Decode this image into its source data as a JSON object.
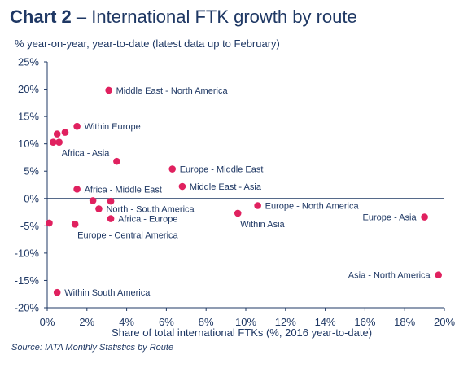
{
  "header": {
    "title_bold": "Chart 2",
    "title_rest": " – International FTK growth by route",
    "subtitle": "% year-on-year, year-to-date (latest data up to February)"
  },
  "source": "Source: IATA Monthly Statistics by Route",
  "chart_data": {
    "type": "scatter",
    "xlabel": "Share of total international FTKs (%, 2016 year-to-date)",
    "ylabel": "% year-on-year, year-to-date (latest data up to February)",
    "xlim": [
      0,
      20
    ],
    "ylim": [
      -20,
      25
    ],
    "x_ticks": [
      "0%",
      "2%",
      "4%",
      "6%",
      "8%",
      "10%",
      "12%",
      "14%",
      "16%",
      "18%",
      "20%"
    ],
    "y_ticks": [
      "25%",
      "20%",
      "15%",
      "10%",
      "5%",
      "0%",
      "-5%",
      "-10%",
      "-15%",
      "-20%"
    ],
    "grid": false,
    "marker_color": "#e0215f",
    "axis_color": "#1f3864",
    "points": [
      {
        "x": 3.1,
        "y": 19.8,
        "label": "Middle East - North America",
        "anchor": "right"
      },
      {
        "x": 1.5,
        "y": 13.2,
        "label": "Within Europe",
        "anchor": "right"
      },
      {
        "x": 0.5,
        "y": 11.8,
        "label": "",
        "anchor": "right"
      },
      {
        "x": 0.9,
        "y": 12.1,
        "label": "",
        "anchor": "right"
      },
      {
        "x": 0.3,
        "y": 10.3,
        "label": "",
        "anchor": "right"
      },
      {
        "x": 0.6,
        "y": 10.3,
        "label": "Africa - Asia",
        "anchor": "below-right"
      },
      {
        "x": 3.5,
        "y": 6.8,
        "label": "",
        "anchor": "right"
      },
      {
        "x": 6.3,
        "y": 5.4,
        "label": "Europe - Middle East",
        "anchor": "right"
      },
      {
        "x": 6.8,
        "y": 2.2,
        "label": "Middle East - Asia",
        "anchor": "right"
      },
      {
        "x": 1.5,
        "y": 1.7,
        "label": "Africa - Middle East",
        "anchor": "right"
      },
      {
        "x": 2.3,
        "y": -0.4,
        "label": "",
        "anchor": "right"
      },
      {
        "x": 3.2,
        "y": -0.5,
        "label": "",
        "anchor": "right"
      },
      {
        "x": 2.6,
        "y": -1.9,
        "label": "North - South America",
        "anchor": "right"
      },
      {
        "x": 3.2,
        "y": -3.7,
        "label": "Africa - Europe",
        "anchor": "right"
      },
      {
        "x": 10.6,
        "y": -1.3,
        "label": "Europe - North America",
        "anchor": "right"
      },
      {
        "x": 9.6,
        "y": -2.7,
        "label": "Within Asia",
        "anchor": "below-right"
      },
      {
        "x": 19.0,
        "y": -3.4,
        "label": "Europe - Asia",
        "anchor": "left"
      },
      {
        "x": 0.1,
        "y": -4.5,
        "label": "",
        "anchor": "right"
      },
      {
        "x": 1.4,
        "y": -4.7,
        "label": "Europe - Central America",
        "anchor": "below-right"
      },
      {
        "x": 19.7,
        "y": -14.0,
        "label": "Asia - North America",
        "anchor": "left"
      },
      {
        "x": 0.5,
        "y": -17.2,
        "label": "Within South America",
        "anchor": "right"
      }
    ]
  }
}
